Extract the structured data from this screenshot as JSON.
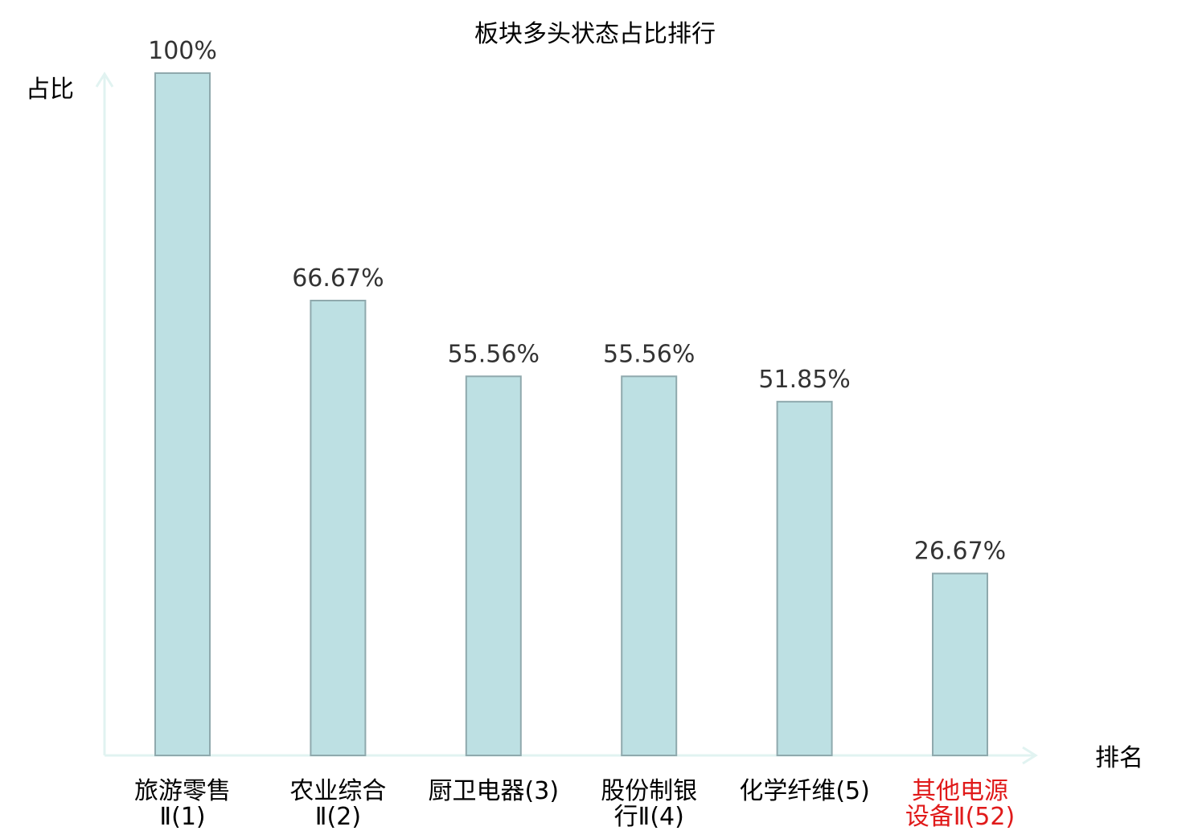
{
  "chart_data": {
    "type": "bar",
    "title": "板块多头状态占比排行",
    "xlabel": "排名",
    "ylabel": "占比",
    "ylim": [
      0,
      100
    ],
    "grid": false,
    "categories": [
      {
        "name_lines": [
          "旅游零售",
          "Ⅱ(1)"
        ],
        "value": 100,
        "label": "100%",
        "highlight": false
      },
      {
        "name_lines": [
          "农业综合",
          "Ⅱ(2)"
        ],
        "value": 66.67,
        "label": "66.67%",
        "highlight": false
      },
      {
        "name_lines": [
          "厨卫电器(3)"
        ],
        "value": 55.56,
        "label": "55.56%",
        "highlight": false
      },
      {
        "name_lines": [
          "股份制银",
          "行Ⅱ(4)"
        ],
        "value": 55.56,
        "label": "55.56%",
        "highlight": false
      },
      {
        "name_lines": [
          "化学纤维(5)"
        ],
        "value": 51.85,
        "label": "51.85%",
        "highlight": false
      },
      {
        "name_lines": [
          "其他电源",
          "设备Ⅱ(52)"
        ],
        "value": 26.67,
        "label": "26.67%",
        "highlight": true
      }
    ],
    "colors": {
      "bar_fill": "#bde0e3",
      "bar_stroke": "#8fa9ad",
      "axis": "#e1f3f1",
      "text": "#333333",
      "label_text": "#000000",
      "highlight": "#e01a1a"
    }
  }
}
